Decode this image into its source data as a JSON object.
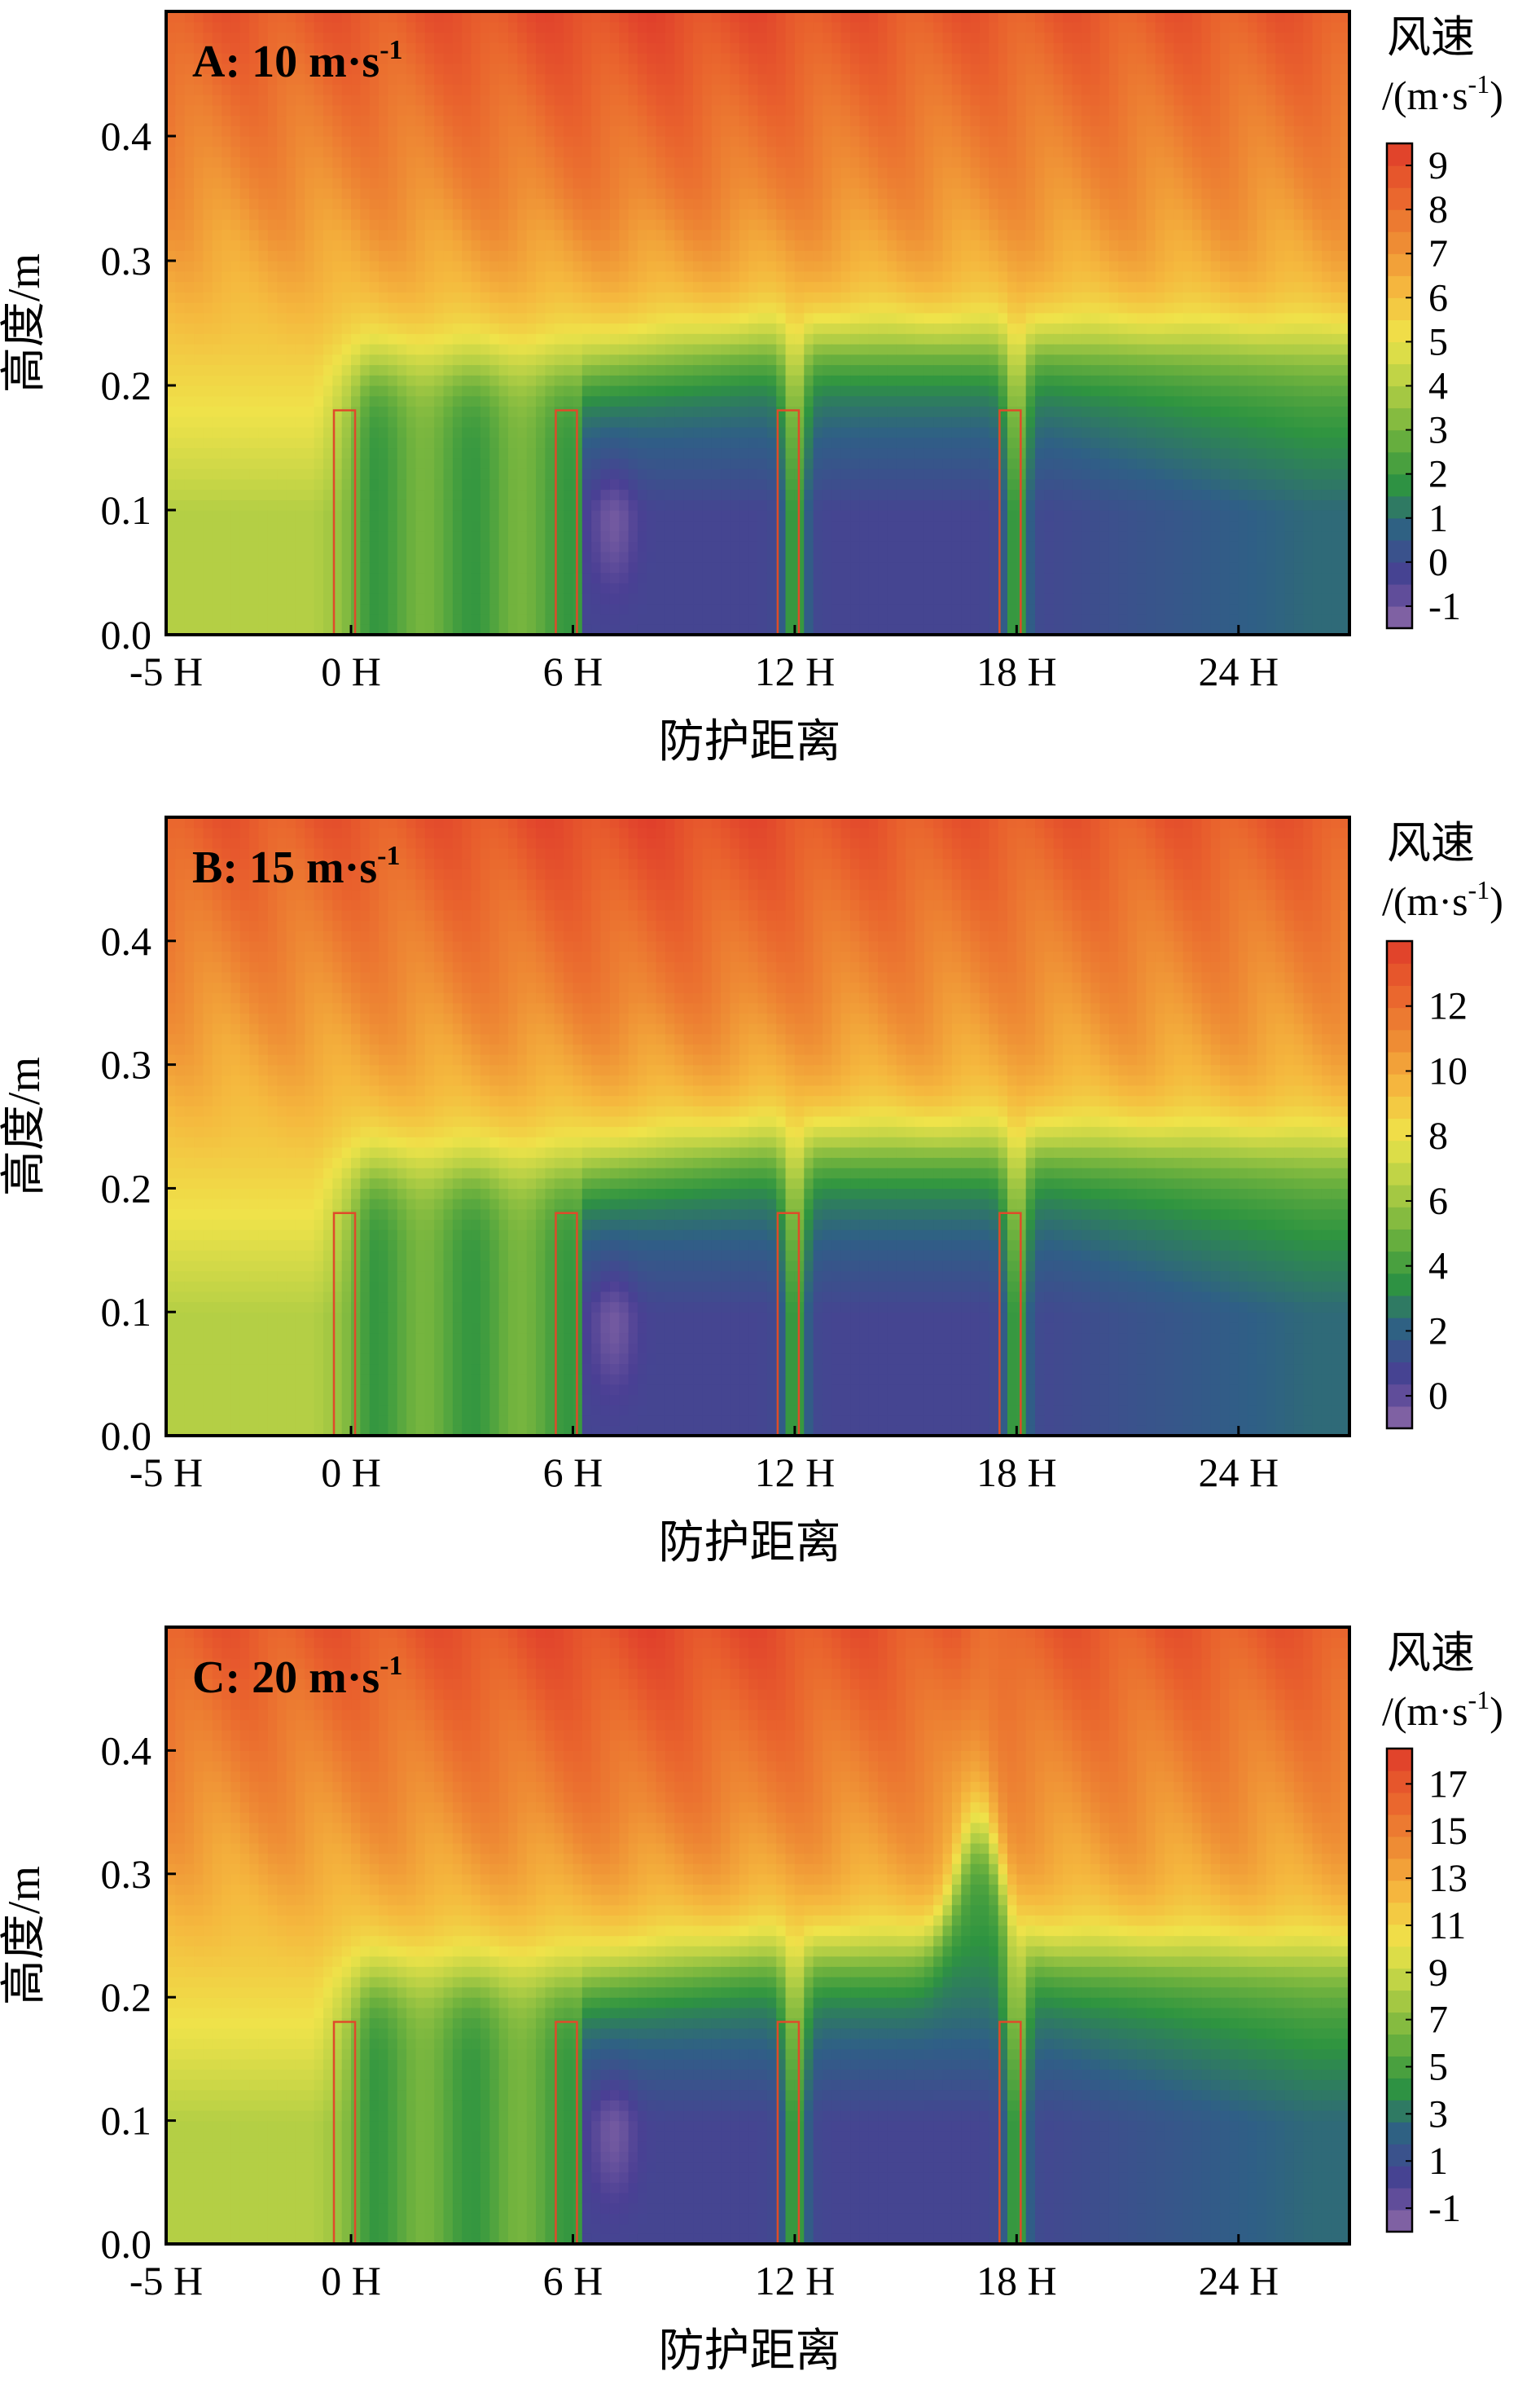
{
  "chart_data": [
    {
      "type": "heatmap",
      "panel_label": "A: 10 m·s",
      "panel_label_sup": "-1",
      "xlabel": "防护距离",
      "ylabel": "高度/m",
      "x_ticks": [
        "-5 H",
        "0 H",
        "6 H",
        "12 H",
        "18 H",
        "24 H"
      ],
      "x_tick_values": [
        -5,
        0,
        6,
        12,
        18,
        24
      ],
      "xlim": [
        -5,
        27
      ],
      "y_ticks": [
        "0.0",
        "0.1",
        "0.2",
        "0.3",
        "0.4"
      ],
      "y_tick_values": [
        0.0,
        0.1,
        0.2,
        0.3,
        0.4
      ],
      "ylim": [
        0.0,
        0.5
      ],
      "colorbar_title": "风速",
      "colorbar_unit_prefix": "/(m·s",
      "colorbar_unit_sup": "-1",
      "colorbar_unit_suffix": ")",
      "colorbar_ticks": [
        "9",
        "8",
        "7",
        "6",
        "5",
        "4",
        "3",
        "2",
        "1",
        "0",
        "-1"
      ],
      "colorbar_tick_values": [
        9,
        8,
        7,
        6,
        5,
        4,
        3,
        2,
        1,
        0,
        -1
      ],
      "colorbar_range": [
        -1.5,
        9.5
      ],
      "inflow_speed": 10,
      "barriers_at": [
        0,
        6,
        12,
        18
      ],
      "barrier_height": 0.18
    },
    {
      "type": "heatmap",
      "panel_label": "B: 15 m·s",
      "panel_label_sup": "-1",
      "xlabel": "防护距离",
      "ylabel": "高度/m",
      "x_ticks": [
        "-5 H",
        "0 H",
        "6 H",
        "12 H",
        "18 H",
        "24 H"
      ],
      "x_tick_values": [
        -5,
        0,
        6,
        12,
        18,
        24
      ],
      "xlim": [
        -5,
        27
      ],
      "y_ticks": [
        "0.0",
        "0.1",
        "0.2",
        "0.3",
        "0.4"
      ],
      "y_tick_values": [
        0.0,
        0.1,
        0.2,
        0.3,
        0.4
      ],
      "ylim": [
        0.0,
        0.5
      ],
      "colorbar_title": "风速",
      "colorbar_unit_prefix": "/(m·s",
      "colorbar_unit_sup": "-1",
      "colorbar_unit_suffix": ")",
      "colorbar_ticks": [
        "12",
        "10",
        "8",
        "6",
        "4",
        "2",
        "0"
      ],
      "colorbar_tick_values": [
        12,
        10,
        8,
        6,
        4,
        2,
        0
      ],
      "colorbar_range": [
        -1,
        14
      ],
      "inflow_speed": 15,
      "barriers_at": [
        0,
        6,
        12,
        18
      ],
      "barrier_height": 0.18
    },
    {
      "type": "heatmap",
      "panel_label": "C: 20 m·s",
      "panel_label_sup": "-1",
      "xlabel": "防护距离",
      "ylabel": "高度/m",
      "x_ticks": [
        "-5 H",
        "0 H",
        "6 H",
        "12 H",
        "18 H",
        "24 H"
      ],
      "x_tick_values": [
        -5,
        0,
        6,
        12,
        18,
        24
      ],
      "xlim": [
        -5,
        27
      ],
      "y_ticks": [
        "0.0",
        "0.1",
        "0.2",
        "0.3",
        "0.4"
      ],
      "y_tick_values": [
        0.0,
        0.1,
        0.2,
        0.3,
        0.4
      ],
      "ylim": [
        0.0,
        0.5
      ],
      "colorbar_title": "风速",
      "colorbar_unit_prefix": "/(m·s",
      "colorbar_unit_sup": "-1",
      "colorbar_unit_suffix": ")",
      "colorbar_ticks": [
        "17",
        "15",
        "13",
        "11",
        "9",
        "7",
        "5",
        "3",
        "1",
        "-1"
      ],
      "colorbar_tick_values": [
        17,
        15,
        13,
        11,
        9,
        7,
        5,
        3,
        1,
        -1
      ],
      "colorbar_range": [
        -2,
        18.5
      ],
      "inflow_speed": 20,
      "barriers_at": [
        0,
        6,
        12,
        18
      ],
      "barrier_height": 0.18
    }
  ],
  "colors": {
    "palette": [
      "#8e6ba8",
      "#4a3f94",
      "#2f5f86",
      "#2e9440",
      "#6fb23e",
      "#b4cf45",
      "#efe34a",
      "#f5b83e",
      "#ee8a34",
      "#e9622d",
      "#df3b2b"
    ],
    "barrier": "#e04a2a",
    "axis": "#000000"
  }
}
